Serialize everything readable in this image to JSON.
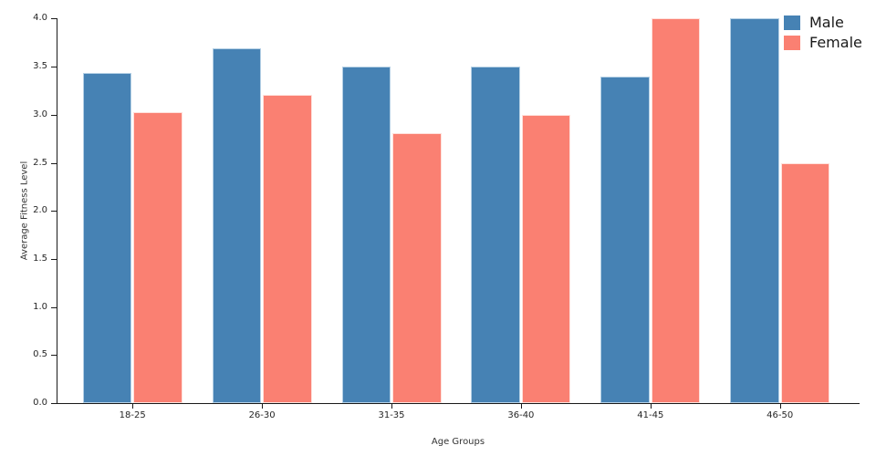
{
  "chart_data": {
    "type": "bar",
    "title": "",
    "xlabel": "Age Groups",
    "ylabel": "Average Fitness Level",
    "categories": [
      "18-25",
      "26-30",
      "31-35",
      "36-40",
      "41-45",
      "46-50"
    ],
    "series": [
      {
        "name": "Male",
        "color": "#4682B4",
        "edge_color": "#B5D0E5",
        "values": [
          3.43,
          3.69,
          3.5,
          3.5,
          3.4,
          4.0
        ]
      },
      {
        "name": "Female",
        "color": "#FA8072",
        "edge_color": "#FFE0DB",
        "values": [
          3.03,
          3.21,
          2.81,
          3.0,
          4.0,
          2.5
        ]
      }
    ],
    "ylim": [
      0.0,
      4.0
    ],
    "ytick_labels": [
      "0.0",
      "0.5",
      "1.0",
      "1.5",
      "2.0",
      "2.5",
      "3.0",
      "3.5",
      "4.0"
    ],
    "grid": false,
    "legend_position": "upper right",
    "background_color": "#FFFFFF",
    "text_color": "#262626"
  }
}
